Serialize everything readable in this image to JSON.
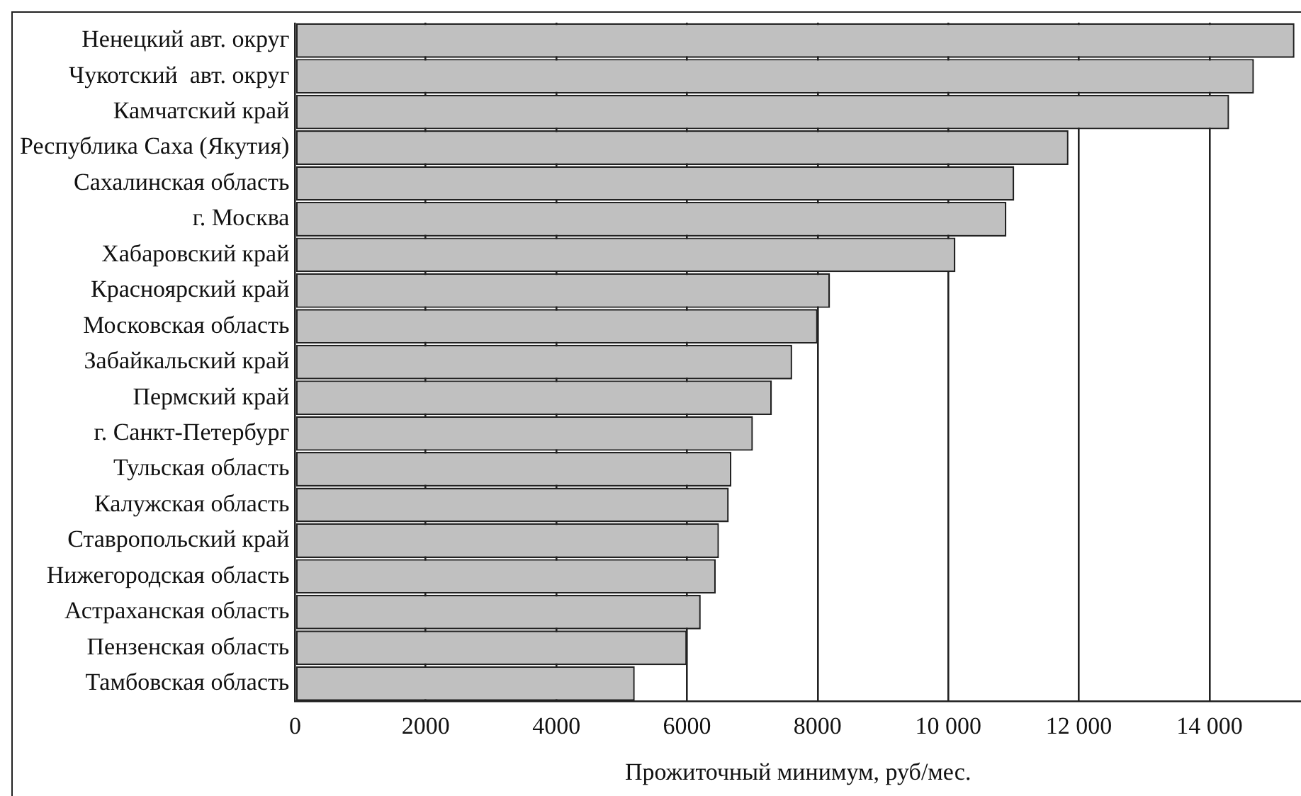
{
  "chart_data": {
    "type": "bar",
    "orientation": "horizontal",
    "xlabel": "Прожиточный минимум, руб/мес.",
    "categories": [
      "Ненецкий авт. округ",
      "Чукотский  авт. округ",
      "Камчатский край",
      "Республика Саха (Якутия)",
      "Сахалинская область",
      "г. Москва",
      "Хабаровский край",
      "Красноярский край",
      "Московская область",
      "Забайкальский край",
      "Пермский край",
      "г. Санкт-Петербург",
      "Тульская область",
      "Калужская область",
      "Ставропольский край",
      "Нижегородская область",
      "Астраханская область",
      "Пензенская область",
      "Тамбовская область"
    ],
    "values": [
      15300,
      14680,
      14300,
      11840,
      11010,
      10890,
      10110,
      8190,
      8000,
      7610,
      7300,
      7010,
      6680,
      6640,
      6490,
      6440,
      6210,
      6000,
      5200
    ],
    "color": "#c0c0c0",
    "xlim": [
      0,
      15400
    ],
    "xticks": [
      0,
      2000,
      4000,
      6000,
      8000,
      {
        "value": 10000,
        "label": "10 000"
      },
      {
        "value": 12000,
        "label": "12 000"
      },
      {
        "value": 14000,
        "label": "14 000"
      }
    ],
    "grid": "x",
    "legend": false
  }
}
